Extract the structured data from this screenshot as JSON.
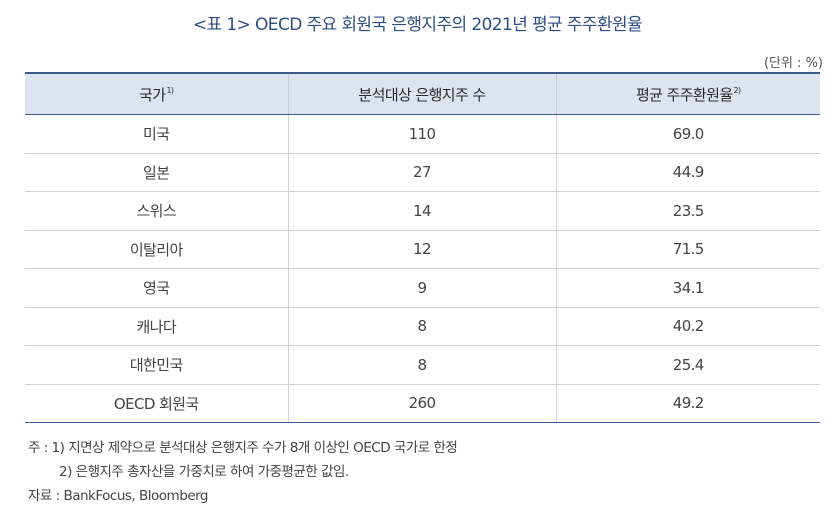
{
  "title": "<표 1> OECD 주요 회원국 은행지주의 2021년 평균 주주환원율",
  "unit": "(단위 : %)",
  "table": {
    "headers": [
      {
        "label": "국가",
        "sup": "1)"
      },
      {
        "label": "분석대상 은행지주 수",
        "sup": ""
      },
      {
        "label": "평균 주주환원율",
        "sup": "2)"
      }
    ],
    "rows": [
      {
        "country": "미국",
        "count": "110",
        "ratio": "69.0"
      },
      {
        "country": "일본",
        "count": "27",
        "ratio": "44.9"
      },
      {
        "country": "스위스",
        "count": "14",
        "ratio": "23.5"
      },
      {
        "country": "이탈리아",
        "count": "12",
        "ratio": "71.5"
      },
      {
        "country": "영국",
        "count": "9",
        "ratio": "34.1"
      },
      {
        "country": "캐나다",
        "count": "8",
        "ratio": "40.2"
      },
      {
        "country": "대한민국",
        "count": "8",
        "ratio": "25.4"
      },
      {
        "country": "OECD 회원국",
        "count": "260",
        "ratio": "49.2"
      }
    ]
  },
  "notes": {
    "note1": "주 : 1) 지면상 제약으로 분석대상 은행지주 수가 8개 이상인 OECD 국가로 한정",
    "note2": "2) 은행지주 총자산을 가중치로 하여 가중평균한 값임.",
    "source": "자료 : BankFocus, Bloomberg"
  }
}
